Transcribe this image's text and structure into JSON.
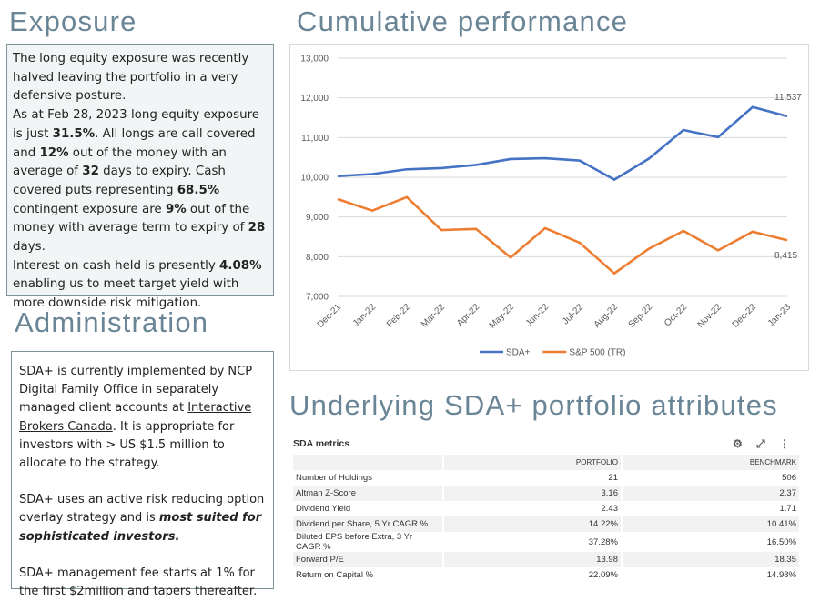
{
  "exposure": {
    "title": "Exposure",
    "p1": "The long equity exposure was recently halved leaving the portfolio in a very defensive posture.",
    "p2": [
      "As at Feb 28, 2023 long equity exposure is just ",
      "31.5%",
      ".  All longs are call covered and ",
      "12%",
      " out of the money with an average of ",
      "32",
      " days to expiry.  Cash covered puts representing ",
      "68.5%",
      " contingent exposure are ",
      "9%",
      " out of the money with average term to expiry of ",
      "28",
      " days."
    ],
    "p3": [
      "Interest on cash held is presently ",
      "4.08%",
      " enabling us to meet target yield with more downside risk mitigation."
    ]
  },
  "administration": {
    "title": "Administration",
    "p1": [
      "SDA+ is currently implemented by NCP Digital Family Office in separately managed client accounts at ",
      "Interactive Brokers Canada",
      ".  It is appropriate for investors with > US $1.5 million to allocate to the strategy."
    ],
    "p2": [
      "SDA+ uses an active risk reducing option overlay strategy and is ",
      "most suited for sophisticated investors."
    ],
    "p3": "SDA+ management fee starts at 1% for the first $2million and tapers thereafter."
  },
  "chart_data": {
    "type": "line",
    "title": "Cumulative performance",
    "categories": [
      "Dec-21",
      "Jan-22",
      "Feb-22",
      "Mar-22",
      "Apr-22",
      "May-22",
      "Jun-22",
      "Jul-22",
      "Aug-22",
      "Sep-22",
      "Oct-22",
      "Nov-22",
      "Dec-22",
      "Jan-23"
    ],
    "series": [
      {
        "name": "SDA+",
        "color": "#4472c4",
        "values": [
          10030,
          10080,
          10200,
          10230,
          10310,
          10460,
          10480,
          10420,
          9940,
          10470,
          11190,
          11010,
          11770,
          11537
        ],
        "value_labels": [
          null,
          null,
          null,
          null,
          null,
          null,
          null,
          null,
          null,
          null,
          null,
          null,
          null,
          "11,537"
        ]
      },
      {
        "name": "S&P 500 (TR)",
        "color": "#ed7d31",
        "values": [
          9450,
          9160,
          9500,
          8670,
          8700,
          7980,
          8720,
          8350,
          7580,
          8200,
          8650,
          8160,
          8630,
          8415
        ],
        "value_labels": [
          null,
          null,
          null,
          null,
          null,
          null,
          null,
          null,
          null,
          null,
          null,
          null,
          null,
          "8,415"
        ]
      }
    ],
    "ylim": [
      7000,
      13000
    ],
    "yticks": [
      {
        "value": 7000,
        "label": "7,000"
      },
      {
        "value": 8000,
        "label": "8,000"
      },
      {
        "value": 9000,
        "label": "9,000"
      },
      {
        "value": 10000,
        "label": "10,000"
      },
      {
        "value": 11000,
        "label": "11,000"
      },
      {
        "value": 12000,
        "label": "12,000"
      },
      {
        "value": 13000,
        "label": "13,000"
      }
    ],
    "grid": true,
    "legend": "bottom"
  },
  "attributes": {
    "title": "Underlying SDA+ portfolio attributes",
    "table_title": "SDA metrics",
    "header": [
      "PORTFOLIO",
      "BENCHMARK"
    ],
    "rows": [
      [
        "Number of Holdings",
        "21",
        "506"
      ],
      [
        "Altman Z-Score",
        "3.16",
        "2.37"
      ],
      [
        "Dividend Yield",
        "2.43",
        "1.71"
      ],
      [
        "Dividend per Share, 5 Yr CAGR %",
        "14.22%",
        "10.41%"
      ],
      [
        "Diluted EPS before Extra, 3 Yr CAGR %",
        "37.28%",
        "16.50%"
      ],
      [
        "Forward P/E",
        "13.98",
        "18.35"
      ],
      [
        "Return on Capital %",
        "22.09%",
        "14.98%"
      ]
    ]
  }
}
